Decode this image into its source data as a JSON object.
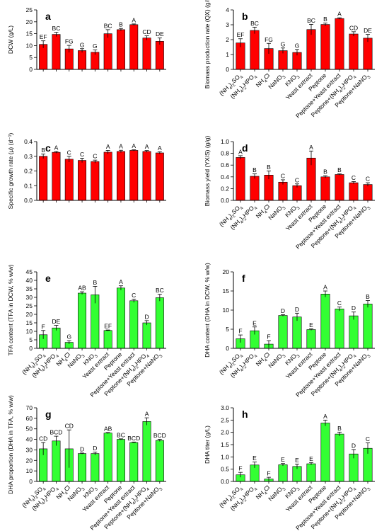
{
  "colors": {
    "red": "#ff0000",
    "green": "#33ff33",
    "axis": "#000000"
  },
  "chart_data": [
    {
      "type": "bar",
      "panel_label": "a",
      "ylabel": "DCW (g/L)",
      "ylim": [
        0,
        25
      ],
      "yticks": [
        0,
        5,
        10,
        15,
        20,
        25
      ],
      "color": "red",
      "categories": [
        "(NH4)2SO4",
        "(NH4)2HPO4",
        "NH4Cl",
        "NaNO3",
        "KNO3",
        "Yeast extract",
        "Peptone",
        "Peptone+Yeast extract",
        "Peptone+(NH4)2HPO4",
        "Peptone+NaNO3"
      ],
      "values": [
        10.5,
        14.7,
        8.6,
        7.9,
        7.2,
        15.0,
        16.7,
        18.8,
        13.2,
        11.8
      ],
      "errors": [
        1.5,
        0.9,
        1.5,
        0.8,
        1.0,
        1.7,
        0.5,
        0.3,
        0.9,
        1.4
      ],
      "letters": [
        "EF",
        "BC",
        "FG",
        "G",
        "G",
        "BC",
        "B",
        "A",
        "CD",
        "DE"
      ],
      "xticks_shown": false
    },
    {
      "type": "bar",
      "panel_label": "b",
      "ylabel": "Biomass production rate (QX) (g/L d)",
      "ylim": [
        0,
        4
      ],
      "yticks": [
        0,
        1,
        2,
        3,
        4
      ],
      "color": "red",
      "categories": [
        "(NH4)2SO4",
        "(NH4)2HPO4",
        "NH4Cl",
        "NaNO3",
        "KNO3",
        "Yeast extract",
        "Peptone",
        "Peptone+Yeast extract",
        "Peptone+(NH4)2HPO4",
        "Peptone+NaNO3"
      ],
      "values": [
        1.78,
        2.62,
        1.4,
        1.26,
        1.14,
        2.68,
        3.02,
        3.42,
        2.38,
        2.1
      ],
      "errors": [
        0.28,
        0.22,
        0.35,
        0.18,
        0.2,
        0.35,
        0.1,
        0.05,
        0.15,
        0.25
      ],
      "letters": [
        "EF",
        "BC",
        "FG",
        "G",
        "G",
        "BC",
        "B",
        "A",
        "CD",
        "DE"
      ],
      "xticks_shown": true
    },
    {
      "type": "bar",
      "panel_label": "c",
      "ylabel": "Specific growth rate (μ) (d⁻¹)",
      "ylim": [
        0,
        0.4
      ],
      "yticks": [
        0.0,
        0.1,
        0.2,
        0.3,
        0.4
      ],
      "color": "red",
      "categories": [
        "(NH4)2SO4",
        "(NH4)2HPO4",
        "NH4Cl",
        "NaNO3",
        "KNO3",
        "Yeast extract",
        "Peptone",
        "Peptone+Yeast extract",
        "Peptone+(NH4)2HPO4",
        "Peptone+NaNO3"
      ],
      "values": [
        0.3,
        0.327,
        0.28,
        0.272,
        0.264,
        0.328,
        0.333,
        0.34,
        0.333,
        0.323
      ],
      "errors": [
        0.015,
        0.006,
        0.02,
        0.015,
        0.01,
        0.012,
        0.008,
        0.004,
        0.006,
        0.008
      ],
      "letters": [
        "B",
        "A",
        "C",
        "C",
        "C",
        "A",
        "A",
        "A",
        "A",
        "A"
      ],
      "xticks_shown": false
    },
    {
      "type": "bar",
      "panel_label": "d",
      "ylabel": "Biomass yield (YX/S) (g/g)",
      "ylim": [
        0,
        1.0
      ],
      "yticks": [
        0.0,
        0.2,
        0.4,
        0.6,
        0.8,
        1.0
      ],
      "color": "red",
      "categories": [
        "(NH4)2SO4",
        "(NH4)2HPO4",
        "NH4Cl",
        "NaNO3",
        "KNO3",
        "Yeast extract",
        "Peptone",
        "Peptone+Yeast extract",
        "Peptone+(NH4)2HPO4",
        "Peptone+NaNO3"
      ],
      "values": [
        0.73,
        0.41,
        0.43,
        0.31,
        0.25,
        0.72,
        0.4,
        0.44,
        0.3,
        0.27
      ],
      "errors": [
        0.03,
        0.04,
        0.07,
        0.04,
        0.03,
        0.12,
        0.02,
        0.01,
        0.02,
        0.03
      ],
      "letters": [
        "A",
        "B",
        "B",
        "C",
        "C",
        "A",
        "B",
        "B",
        "C",
        "C"
      ],
      "xticks_shown": true
    },
    {
      "type": "bar",
      "panel_label": "e",
      "ylabel": "TFA content (TFA in DCW, % w/w)",
      "ylim": [
        0,
        45
      ],
      "yticks": [
        0,
        5,
        10,
        15,
        20,
        25,
        30,
        35,
        40,
        45
      ],
      "color": "green",
      "categories": [
        "(NH4)2SO4",
        "(NH4)2HPO4",
        "NH4Cl",
        "NaNO3",
        "KNO3",
        "Yeast extract",
        "Peptone",
        "Peptone+Yeast extract",
        "Peptone+(NH4)2HPO4",
        "Peptone+NaNO3"
      ],
      "values": [
        8.0,
        12.0,
        3.5,
        32.5,
        31.5,
        10.5,
        35.5,
        28.0,
        15.0,
        29.8
      ],
      "errors": [
        2.5,
        1.5,
        1.0,
        0.8,
        5.0,
        0.3,
        1.3,
        1.0,
        1.3,
        2.0
      ],
      "letters": [
        "F",
        "DE",
        "G",
        "AB",
        "B",
        "EF",
        "A",
        "C",
        "D",
        "BC"
      ],
      "xticks_shown": true
    },
    {
      "type": "bar",
      "panel_label": "f",
      "ylabel": "DHA content (DHA in DCW, % w/w)",
      "ylim": [
        0,
        20
      ],
      "yticks": [
        0,
        5,
        10,
        15,
        20
      ],
      "color": "green",
      "categories": [
        "(NH4)2SO4",
        "(NH4)2HPO4",
        "NH4Cl",
        "NaNO3",
        "KNO3",
        "Yeast extract",
        "Peptone",
        "Peptone+Yeast extract",
        "Peptone+(NH4)2HPO4",
        "Peptone+NaNO3"
      ],
      "values": [
        2.5,
        4.6,
        1.1,
        8.6,
        8.2,
        4.9,
        14.2,
        10.3,
        8.5,
        11.6
      ],
      "errors": [
        1.0,
        1.0,
        0.9,
        0.2,
        1.0,
        0.2,
        0.8,
        0.5,
        1.0,
        0.9
      ],
      "letters": [
        "F",
        "E",
        "F",
        "D",
        "D",
        "E",
        "A",
        "C",
        "D",
        "B"
      ],
      "xticks_shown": true
    },
    {
      "type": "bar",
      "panel_label": "g",
      "ylabel": "DHA proportion (DHA in TFA, % w/w)",
      "ylim": [
        0,
        70
      ],
      "yticks": [
        0,
        10,
        20,
        30,
        40,
        50,
        60,
        70
      ],
      "color": "green",
      "categories": [
        "(NH4)2SO4",
        "(NH4)2HPO4",
        "NH4Cl",
        "NaNO3",
        "KNO3",
        "Yeast extract",
        "Peptone",
        "Peptone+Yeast extract",
        "Peptone+(NH4)2HPO4",
        "Peptone+NaNO3"
      ],
      "values": [
        31.0,
        38.5,
        31.0,
        26.5,
        26.5,
        46.0,
        40.0,
        37.0,
        57.0,
        39.0
      ],
      "errors": [
        6.0,
        4.5,
        18.0,
        0.5,
        1.5,
        0.5,
        0.5,
        0.5,
        3.5,
        1.0
      ],
      "letters": [
        "CD",
        "BCD",
        "CD",
        "D",
        "D",
        "AB",
        "BC",
        "BCD",
        "A",
        "BCD"
      ],
      "xticks_shown": true
    },
    {
      "type": "bar",
      "panel_label": "h",
      "ylabel": "DHA titer (g/L)",
      "ylim": [
        0,
        3.0
      ],
      "yticks": [
        0.0,
        0.5,
        1.0,
        1.5,
        2.0,
        2.5,
        3.0
      ],
      "color": "green",
      "categories": [
        "(NH4)2SO4",
        "(NH4)2HPO4",
        "NH4Cl",
        "NaNO3",
        "KNO3",
        "Yeast extract",
        "Peptone",
        "Peptone+Yeast extract",
        "Peptone+(NH4)2HPO4",
        "Peptone+NaNO3"
      ],
      "values": [
        0.27,
        0.67,
        0.1,
        0.68,
        0.61,
        0.72,
        2.38,
        1.93,
        1.12,
        1.35
      ],
      "errors": [
        0.1,
        0.12,
        0.07,
        0.05,
        0.1,
        0.05,
        0.12,
        0.08,
        0.18,
        0.22
      ],
      "letters": [
        "F",
        "E",
        "F",
        "E",
        "E",
        "E",
        "A",
        "B",
        "D",
        "C"
      ],
      "xticks_shown": true
    }
  ]
}
